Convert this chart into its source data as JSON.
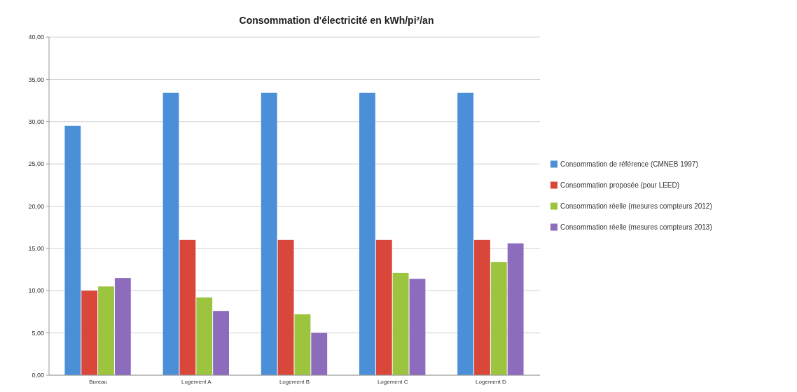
{
  "chart_data": {
    "type": "bar",
    "title": "Consommation d'électricité en kWh/pi²/an",
    "categories": [
      "Bureau",
      "Logement A",
      "Logement B",
      "Logement C",
      "Logement D"
    ],
    "series": [
      {
        "name": "Consommation de référence (CMNEB 1997)",
        "color": "#4a8fd8",
        "values": [
          29.5,
          33.4,
          33.4,
          33.4,
          33.4
        ]
      },
      {
        "name": "Consommation proposée (pour LEED)",
        "color": "#d9473b",
        "values": [
          10.0,
          16.0,
          16.0,
          16.0,
          16.0
        ]
      },
      {
        "name": "Consommation réelle (mesures compteurs 2012)",
        "color": "#9cc43e",
        "values": [
          10.5,
          9.2,
          7.2,
          12.1,
          13.4
        ]
      },
      {
        "name": "Consommation réelle (mesures compteurs 2013)",
        "color": "#8d6bbd",
        "values": [
          11.5,
          7.6,
          5.0,
          11.4,
          15.6
        ]
      }
    ],
    "ylim": [
      0,
      40
    ],
    "yticks": [
      {
        "value": 0,
        "label": "0,00"
      },
      {
        "value": 5,
        "label": "5,00"
      },
      {
        "value": 10,
        "label": "10,00"
      },
      {
        "value": 15,
        "label": "15,00"
      },
      {
        "value": 20,
        "label": "20,00"
      },
      {
        "value": 25,
        "label": "25,00"
      },
      {
        "value": 30,
        "label": "30,00"
      },
      {
        "value": 35,
        "label": "35,00"
      },
      {
        "value": 40,
        "label": "40,00"
      }
    ],
    "grid": "y",
    "legend": "right"
  }
}
